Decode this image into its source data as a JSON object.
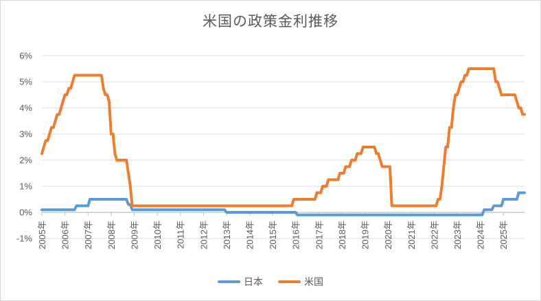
{
  "chart_data": {
    "type": "line",
    "title": "米国の政策金利推移",
    "x_start": "2005-01",
    "x_end": "2025-12",
    "months_total": 252,
    "x_tick_labels": [
      "2005年",
      "2006年",
      "2007年",
      "2008年",
      "2009年",
      "2010年",
      "2011年",
      "2012年",
      "2013年",
      "2014年",
      "2015年",
      "2016年",
      "2017年",
      "2018年",
      "2019年",
      "2020年",
      "2021年",
      "2022年",
      "2023年",
      "2024年",
      "2025年"
    ],
    "y_tick_labels": [
      "-1%",
      "0%",
      "1%",
      "2%",
      "3%",
      "4%",
      "5%",
      "6%"
    ],
    "ylim": [
      -1,
      6
    ],
    "y_step": 1,
    "grid": "horizontal",
    "legend_position": "bottom",
    "series": [
      {
        "name": "日本",
        "color": "#5B9BD5",
        "steps_percent": [
          [
            0,
            0.1
          ],
          [
            18,
            0.25
          ],
          [
            25,
            0.5
          ],
          [
            45,
            0.3
          ],
          [
            47,
            0.1
          ],
          [
            96,
            0.0
          ],
          [
            133,
            -0.1
          ],
          [
            230,
            0.1
          ],
          [
            235,
            0.25
          ],
          [
            240,
            0.5
          ],
          [
            248,
            0.75
          ]
        ]
      },
      {
        "name": "米国",
        "color": "#ED7D31",
        "steps_percent": [
          [
            0,
            2.25
          ],
          [
            1,
            2.5
          ],
          [
            2,
            2.75
          ],
          [
            4,
            3.0
          ],
          [
            5,
            3.25
          ],
          [
            7,
            3.5
          ],
          [
            8,
            3.75
          ],
          [
            10,
            4.0
          ],
          [
            11,
            4.25
          ],
          [
            12,
            4.5
          ],
          [
            14,
            4.75
          ],
          [
            16,
            5.0
          ],
          [
            17,
            5.25
          ],
          [
            32,
            4.75
          ],
          [
            33,
            4.5
          ],
          [
            35,
            4.25
          ],
          [
            36,
            3.0
          ],
          [
            38,
            2.25
          ],
          [
            39,
            2.0
          ],
          [
            45,
            1.5
          ],
          [
            46,
            1.0
          ],
          [
            47,
            0.25
          ],
          [
            131,
            0.5
          ],
          [
            143,
            0.75
          ],
          [
            146,
            1.0
          ],
          [
            149,
            1.25
          ],
          [
            155,
            1.5
          ],
          [
            158,
            1.75
          ],
          [
            161,
            2.0
          ],
          [
            164,
            2.25
          ],
          [
            167,
            2.5
          ],
          [
            174,
            2.25
          ],
          [
            176,
            2.0
          ],
          [
            177,
            1.75
          ],
          [
            182,
            0.25
          ],
          [
            206,
            0.5
          ],
          [
            208,
            1.0
          ],
          [
            209,
            1.75
          ],
          [
            210,
            2.5
          ],
          [
            212,
            3.25
          ],
          [
            214,
            4.0
          ],
          [
            215,
            4.5
          ],
          [
            217,
            4.75
          ],
          [
            218,
            5.0
          ],
          [
            220,
            5.25
          ],
          [
            222,
            5.5
          ],
          [
            236,
            5.0
          ],
          [
            238,
            4.75
          ],
          [
            239,
            4.5
          ],
          [
            247,
            4.25
          ],
          [
            248,
            4.0
          ],
          [
            250,
            3.75
          ]
        ]
      }
    ],
    "colors": {
      "text": "#595959",
      "gridline": "#D9D9D9",
      "axis_line": "#BFBFBF"
    }
  }
}
